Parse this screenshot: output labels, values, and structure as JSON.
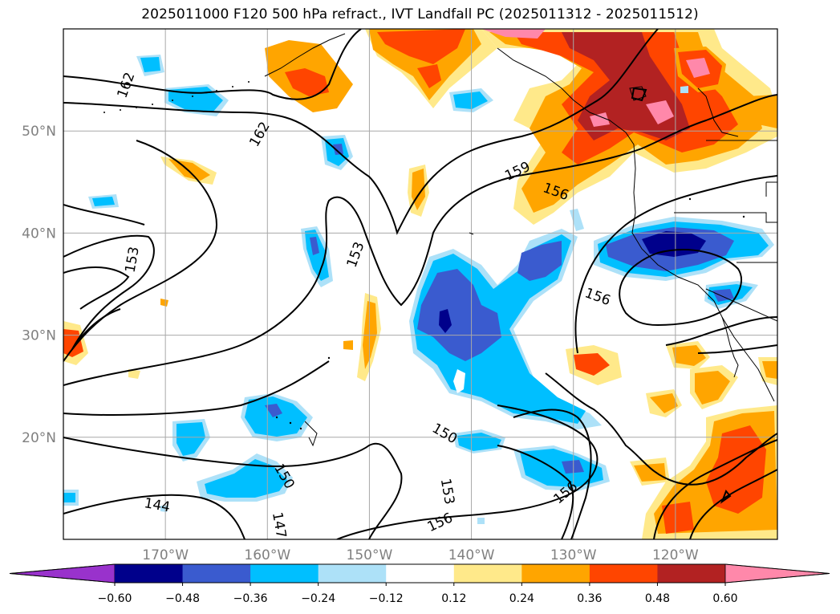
{
  "title": "2025011000 F120 500 hPa refract., IVT Landfall PC (2025011312 - 2025011512)",
  "map": {
    "projection": "cylindrical",
    "lon_range": [
      -180,
      -110
    ],
    "lat_range": [
      10,
      60
    ],
    "lat_ticks": [
      {
        "lat": 50,
        "label": "50°N"
      },
      {
        "lat": 40,
        "label": "40°N"
      },
      {
        "lat": 30,
        "label": "30°N"
      },
      {
        "lat": 20,
        "label": "20°N"
      }
    ],
    "lon_ticks": [
      {
        "lon": -170,
        "label": "170°W"
      },
      {
        "lon": -160,
        "label": "160°W"
      },
      {
        "lon": -150,
        "label": "150°W"
      },
      {
        "lon": -140,
        "label": "140°W"
      },
      {
        "lon": -130,
        "label": "130°W"
      },
      {
        "lon": -120,
        "label": "120°W"
      }
    ],
    "grid": true,
    "contour_labels": [
      {
        "text": "162",
        "lon": -173.9,
        "lat": 54.5,
        "angle": -70
      },
      {
        "text": "162",
        "lon": -160.8,
        "lat": 49.7,
        "angle": -60
      },
      {
        "text": "159",
        "lon": -135.5,
        "lat": 46.1,
        "angle": -25
      },
      {
        "text": "156",
        "lon": -131.7,
        "lat": 44.1,
        "angle": 20
      },
      {
        "text": "156",
        "lon": -127.6,
        "lat": 33.8,
        "angle": 20
      },
      {
        "text": "153",
        "lon": -173.3,
        "lat": 37.4,
        "angle": -80
      },
      {
        "text": "153",
        "lon": -151.4,
        "lat": 37.9,
        "angle": -70
      },
      {
        "text": "150",
        "lon": -142.6,
        "lat": 20.4,
        "angle": 30
      },
      {
        "text": "150",
        "lon": -158.3,
        "lat": 16.2,
        "angle": 60
      },
      {
        "text": "153",
        "lon": -142.3,
        "lat": 14.7,
        "angle": 80
      },
      {
        "text": "156",
        "lon": -130.8,
        "lat": 14.6,
        "angle": -40
      },
      {
        "text": "147",
        "lon": -158.8,
        "lat": 11.4,
        "angle": 80
      },
      {
        "text": "144",
        "lon": -170.8,
        "lat": 13.4,
        "angle": 10
      },
      {
        "text": "156",
        "lon": -143.1,
        "lat": 11.7,
        "angle": -25
      }
    ]
  },
  "colorbar": {
    "ticks": [
      "−0.60",
      "−0.48",
      "−0.36",
      "−0.24",
      "−0.12",
      "0.12",
      "0.24",
      "0.36",
      "0.48",
      "0.60"
    ],
    "colors": {
      "under": "#9932CC",
      "neg060": "#00008B",
      "neg048": "#3A5BCF",
      "neg036": "#00BFFF",
      "neg024": "#ADE1F8",
      "neutral": "#FFFFFF",
      "pos012": "#FFE98A",
      "pos024": "#FFA500",
      "pos036": "#FF4500",
      "pos048": "#B22222",
      "over": "#FF88AA"
    }
  }
}
